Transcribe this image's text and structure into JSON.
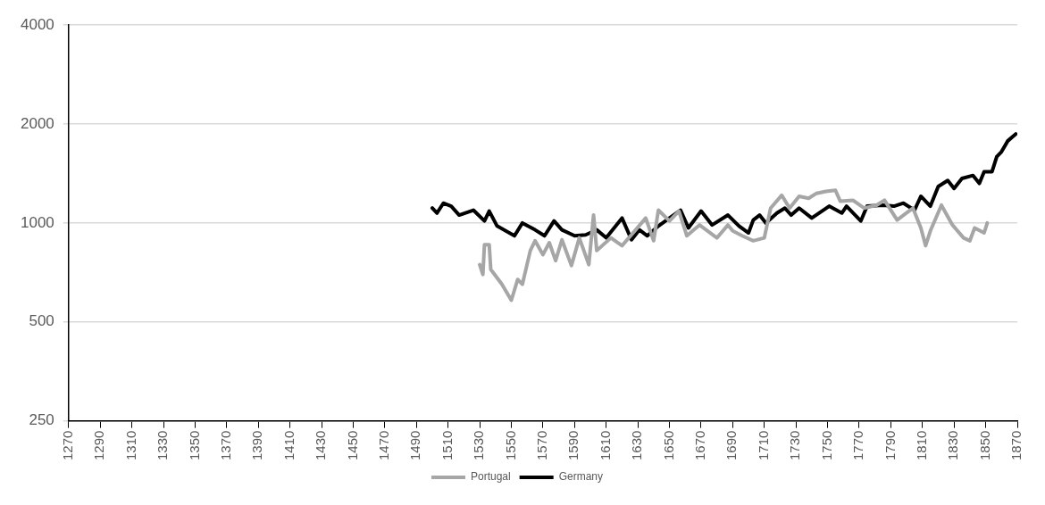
{
  "chart_data": {
    "type": "line",
    "log": "y",
    "grid": "y",
    "legend": "bottom",
    "marker": "none",
    "line_style": "solid",
    "xlim": [
      1270,
      1870
    ],
    "xticks": [
      1270,
      1290,
      1310,
      1330,
      1350,
      1370,
      1390,
      1410,
      1430,
      1450,
      1470,
      1490,
      1510,
      1530,
      1550,
      1570,
      1590,
      1610,
      1630,
      1650,
      1670,
      1690,
      1710,
      1730,
      1750,
      1770,
      1790,
      1810,
      1830,
      1850,
      1870
    ],
    "ylim": [
      250,
      4000
    ],
    "yticks": [
      250,
      500,
      1000,
      2000,
      4000
    ],
    "series": [
      {
        "name": "Portugal",
        "color": "#a6a6a6",
        "x": [
          1530,
          1532,
          1533,
          1536,
          1537,
          1544,
          1550,
          1554,
          1557,
          1562,
          1565,
          1570,
          1574,
          1578,
          1582,
          1588,
          1593,
          1599,
          1602,
          1604,
          1613,
          1620,
          1627,
          1635,
          1640,
          1643,
          1650,
          1656,
          1661,
          1669,
          1680,
          1687,
          1690,
          1696,
          1703,
          1710,
          1714,
          1721,
          1726,
          1732,
          1738,
          1743,
          1749,
          1755,
          1758,
          1766,
          1773,
          1781,
          1786,
          1794,
          1804,
          1809,
          1812,
          1815,
          1822,
          1829,
          1836,
          1840,
          1843,
          1849,
          1851
        ],
        "values": [
          747,
          697,
          859,
          859,
          722,
          651,
          582,
          673,
          651,
          824,
          883,
          801,
          871,
          768,
          889,
          742,
          901,
          747,
          1057,
          824,
          901,
          853,
          933,
          1035,
          883,
          1094,
          1014,
          1087,
          914,
          986,
          901,
          986,
          946,
          914,
          883,
          901,
          1110,
          1214,
          1110,
          1206,
          1189,
          1231,
          1248,
          1257,
          1165,
          1173,
          1110,
          1133,
          1173,
          1021,
          1110,
          966,
          853,
          946,
          1133,
          986,
          901,
          883,
          966,
          933,
          1000
        ]
      },
      {
        "name": "Germany",
        "color": "#000000",
        "x": [
          1500,
          1503,
          1507,
          1512,
          1517,
          1526,
          1533,
          1536,
          1541,
          1552,
          1557,
          1565,
          1571,
          1577,
          1582,
          1590,
          1597,
          1604,
          1610,
          1620,
          1626,
          1631,
          1636,
          1643,
          1650,
          1657,
          1662,
          1670,
          1677,
          1687,
          1694,
          1700,
          1703,
          1707,
          1711,
          1718,
          1723,
          1727,
          1732,
          1740,
          1751,
          1759,
          1762,
          1771,
          1775,
          1785,
          1792,
          1798,
          1805,
          1809,
          1815,
          1820,
          1826,
          1830,
          1835,
          1842,
          1846,
          1849,
          1854,
          1857,
          1860,
          1864,
          1869
        ],
        "values": [
          1110,
          1072,
          1149,
          1125,
          1057,
          1094,
          1014,
          1087,
          979,
          914,
          1000,
          953,
          914,
          1014,
          953,
          914,
          920,
          953,
          901,
          1035,
          889,
          953,
          914,
          979,
          1035,
          1094,
          966,
          1087,
          986,
          1057,
          979,
          933,
          1021,
          1057,
          1000,
          1072,
          1110,
          1057,
          1110,
          1035,
          1125,
          1072,
          1125,
          1014,
          1125,
          1133,
          1125,
          1149,
          1094,
          1206,
          1125,
          1292,
          1347,
          1274,
          1366,
          1395,
          1320,
          1433,
          1433,
          1592,
          1647,
          1778,
          1866
        ]
      }
    ]
  }
}
